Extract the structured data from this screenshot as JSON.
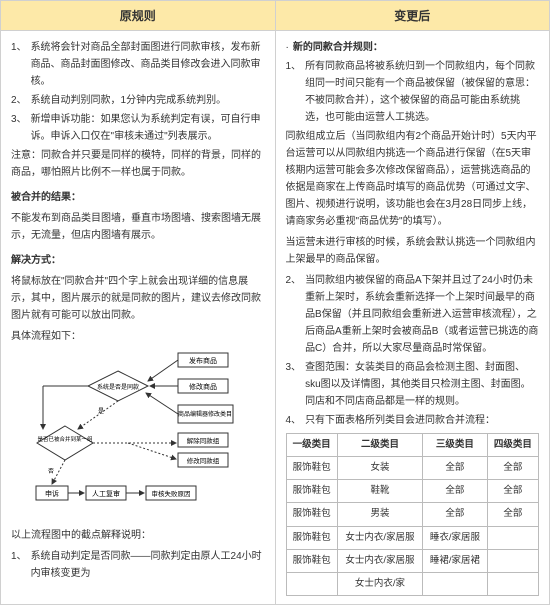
{
  "left": {
    "header": "原规则",
    "items": [
      "系统将会针对商品全部封面图进行同款审核，发布新商品、商品封面图修改、商品类目修改会进入同款审核。",
      "系统自动判别同款，1分钟内完成系统判别。",
      "新增申诉功能：如果您认为系统判定有误，可自行申诉。申诉入口仅在\"审核未通过\"列表展示。"
    ],
    "note": "注意：同款合并只要是同样的模特，同样的背景，同样的商品，哪怕照片比例不一样也属于同款。",
    "r1_title": "被合并的结果：",
    "r1_text": "不能发布到商品类目图墙，垂直市场图墙、搜索图墙无展示，无流量，但店内图墙有展示。",
    "r2_title": "解决方式：",
    "r2_text1": "将鼠标放在\"同款合并\"四个字上就会出现详细的信息展示，其中，图片展示的就是同款的图片，建议去修改同款图片就有可能可以放出同款。",
    "r2_text2": "具体流程如下：",
    "r3_text": "以上流程图中的截点解释说明：",
    "r3_item": "系统自动判定是否同款——同款判定由原人工24小时内审核变更为",
    "flow": {
      "n_pub": "发布商品",
      "n_edit": "修改商品",
      "n_cat": "商品编辑器修改类目",
      "n_sys": "系统是否是同款",
      "n_merge": "是否已被合并到某一组",
      "n_appeal": "申诉",
      "n_manual": "人工复审",
      "n_rel": "解除同款组",
      "n_mod": "修改同款组",
      "n_fail": "审核失败原因",
      "yes": "是",
      "no": "否"
    }
  },
  "right": {
    "header": "变更后",
    "title": "新的同款合并规则：",
    "p1": "所有同款商品将被系统归到一个同款组内，每个同款组同一时间只能有一个商品被保留（被保留的意思：不被同款合并），这个被保留的商品可能由系统挑选，也可能由运营人工挑选。",
    "p2": "同款组成立后（当同款组内有2个商品开始计时）5天内平台运营可以从同款组内挑选一个商品进行保留（在5天审核期内运营可能会多次修改保留商品），运营挑选商品的依据是商家在上传商品时填写的商品优势（可通过文字、图片、视频进行说明，该功能也会在3月28日同步上线，请商家务必重视\"商品优势\"的填写）。",
    "p3": "当运营未进行审核的时候，系统会默认挑选一个同款组内上架最早的商品保留。",
    "p4n": "2、",
    "p4": "当同款组内被保留的商品A下架并且过了24小时仍未重新上架时，系统会重新选择一个上架时间最早的商品B保留（并且同款组会重新进入运营审核流程），之后商品A重新上架时会被商品B（或者运营已挑选的商品C）合并，所以大家尽量商品时常保留。",
    "p5n": "3、",
    "p5": "查图范围：女装类目的商品会检测主图、封面图、sku图以及详情图，其他类目只检测主图、封面图。同店和不同店商品都是一样的规则。",
    "p6n": "4、",
    "p6": "只有下面表格所列类目会进同款合并流程：",
    "table": {
      "head": [
        "一级类目",
        "二级类目",
        "三级类目",
        "四级类目"
      ],
      "rows": [
        [
          "服饰鞋包",
          "女装",
          "全部",
          "全部"
        ],
        [
          "服饰鞋包",
          "鞋靴",
          "全部",
          "全部"
        ],
        [
          "服饰鞋包",
          "男装",
          "全部",
          "全部"
        ],
        [
          "服饰鞋包",
          "女士内衣/家居服",
          "睡衣/家居服",
          ""
        ],
        [
          "服饰鞋包",
          "女士内衣/家居服",
          "睡裙/家居裙",
          ""
        ],
        [
          "",
          "女士内衣/家",
          "",
          " "
        ]
      ]
    }
  }
}
